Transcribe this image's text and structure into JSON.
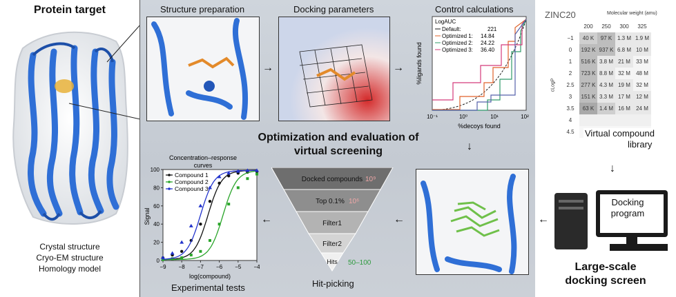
{
  "left": {
    "title": "Protein target",
    "structure_types": [
      "Crystal structure",
      "Cryo-EM structure",
      "Homology model"
    ]
  },
  "center": {
    "panels": {
      "structure_preparation": "Structure preparation",
      "docking_parameters": "Docking parameters",
      "control_calculations": "Control calculations"
    },
    "title_line1": "Optimization and evaluation of",
    "title_line2": "virtual screening",
    "experimental_tests": "Experimental tests",
    "hit_picking": "Hit-picking"
  },
  "control_chart": {
    "legend_title": "LogAUC",
    "legend": [
      {
        "name": "Default:",
        "value": "221",
        "color": "#1a1a1a"
      },
      {
        "name": "Optimized 1:",
        "value": "14.84",
        "color": "#e0622a"
      },
      {
        "name": "Optimized 2:",
        "value": "24.22",
        "color": "#2f9a6a"
      },
      {
        "name": "Optimized 3:",
        "value": "36.40",
        "color": "#d43a7a"
      }
    ],
    "ylabel": "%ligands found",
    "xlabel": "%decoys found",
    "xticks": [
      "10⁻¹",
      "10⁰",
      "10¹",
      "10²"
    ]
  },
  "funnel": {
    "levels": [
      {
        "label": "Docked compounds",
        "count": "10⁹",
        "count_color": "#f2a8a8"
      },
      {
        "label": "Top 0.1%",
        "count": "10⁶",
        "count_color": "#f2a8a8"
      },
      {
        "label": "Filter1",
        "count": "",
        "count_color": ""
      },
      {
        "label": "Filter2",
        "count": "",
        "count_color": ""
      },
      {
        "label": "Hits",
        "count": "50–100",
        "count_color": "#2e9a3e"
      }
    ]
  },
  "chart_data": {
    "type": "scatter",
    "title": "Concentration–response curves",
    "xlabel": "log(compound)",
    "ylabel": "Signal",
    "xlim": [
      -9,
      -4
    ],
    "ylim": [
      0,
      100
    ],
    "xticks": [
      -9,
      -8,
      -7,
      -6,
      -5,
      -4
    ],
    "yticks": [
      0,
      20,
      40,
      60,
      80,
      100
    ],
    "legend_position": "top-left",
    "series": [
      {
        "name": "Compound 1",
        "color": "#111111",
        "ec50": -6.6,
        "x": [
          -9,
          -8.5,
          -8,
          -7.5,
          -7,
          -6.5,
          -6,
          -5.5,
          -5,
          -4.5,
          -4
        ],
        "y": [
          3,
          6,
          10,
          22,
          40,
          65,
          85,
          93,
          96,
          97,
          98
        ]
      },
      {
        "name": "Compound 2",
        "color": "#2aa52a",
        "ec50": -5.8,
        "x": [
          -9,
          -8.5,
          -8,
          -7.5,
          -7,
          -6.5,
          -6,
          -5.5,
          -5,
          -4.5,
          -4
        ],
        "y": [
          1,
          2,
          3,
          6,
          10,
          22,
          40,
          62,
          80,
          90,
          95
        ]
      },
      {
        "name": "Compound 3",
        "color": "#2233cc",
        "ec50": -7.0,
        "x": [
          -9,
          -8.5,
          -8,
          -7.5,
          -7,
          -6.5,
          -6,
          -5.5,
          -5,
          -4.5,
          -4
        ],
        "y": [
          3,
          8,
          20,
          38,
          60,
          80,
          92,
          96,
          98,
          99,
          99
        ]
      }
    ]
  },
  "zinc": {
    "title": "ZINC20",
    "mw_label": "Molecular weight (amu)",
    "mw_cols": [
      "200",
      "250",
      "300",
      "325"
    ],
    "clogp_label": "cLogP",
    "rows": [
      {
        "logp": "−1",
        "cells": [
          "40 K",
          "97 K",
          "1.3 M",
          "1.9 M"
        ]
      },
      {
        "logp": "0",
        "cells": [
          "192 K",
          "937 K",
          "6.8 M",
          "10 M"
        ]
      },
      {
        "logp": "1",
        "cells": [
          "516 K",
          "3.8 M",
          "21 M",
          "33 M"
        ]
      },
      {
        "logp": "2",
        "cells": [
          "723 K",
          "8.8 M",
          "32 M",
          "48 M"
        ]
      },
      {
        "logp": "2.5",
        "cells": [
          "277 K",
          "4.3 M",
          "19 M",
          "32 M"
        ]
      },
      {
        "logp": "3",
        "cells": [
          "151 K",
          "3.3 M",
          "17 M",
          "12 M"
        ]
      },
      {
        "logp": "3.5",
        "cells": [
          "63 K",
          "1.4 M",
          "16 M",
          "24 M"
        ]
      },
      {
        "logp": "4",
        "cells": [
          "",
          "",
          "",
          ""
        ]
      },
      {
        "logp": "4.5",
        "cells": [
          "",
          "",
          "",
          ""
        ]
      }
    ],
    "library_label_1": "Virtual compound",
    "library_label_2": "library"
  },
  "docking": {
    "program_line1": "Docking",
    "program_line2": "program",
    "screen_line1": "Large-scale",
    "screen_line2": "docking screen"
  }
}
